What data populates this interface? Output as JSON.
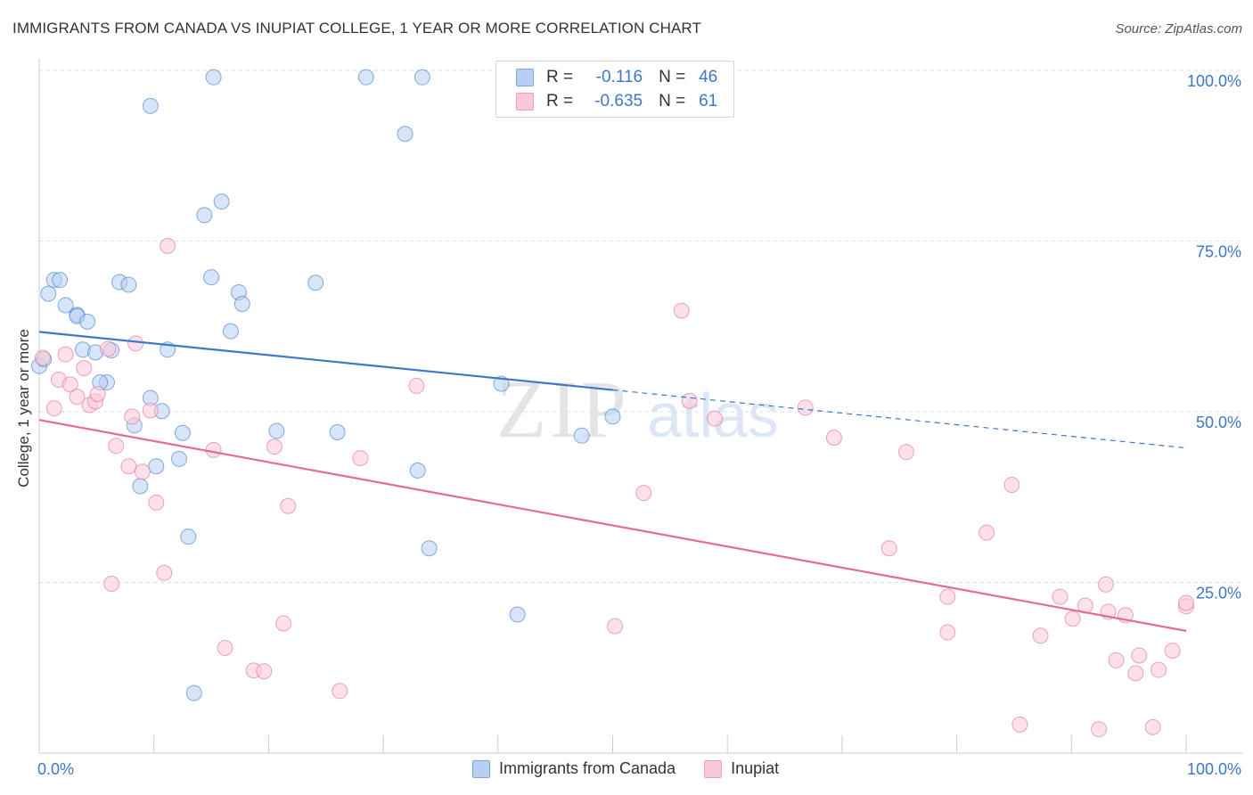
{
  "title": "IMMIGRANTS FROM CANADA VS INUPIAT COLLEGE, 1 YEAR OR MORE CORRELATION CHART",
  "source": "Source: ZipAtlas.com",
  "watermark": {
    "zip": "ZIP",
    "atlas": "atlas"
  },
  "legend": {
    "r_label": "R =",
    "n_label": "N =",
    "series": [
      {
        "name": "Immigrants from Canada",
        "r": "-0.116",
        "n": "46",
        "color": "#3b78c9"
      },
      {
        "name": "Inupiat",
        "r": "-0.635",
        "n": "61",
        "color": "#e46b96"
      }
    ]
  },
  "chart_data": {
    "type": "scatter",
    "title": "IMMIGRANTS FROM CANADA VS INUPIAT COLLEGE, 1 YEAR OR MORE CORRELATION CHART",
    "xlabel": "",
    "ylabel": "College, 1 year or more",
    "xlim": [
      0,
      100
    ],
    "ylim": [
      0,
      100
    ],
    "x_tick_labels": [
      "0.0%",
      "100.0%"
    ],
    "y_tick_labels": [
      "25.0%",
      "50.0%",
      "75.0%",
      "100.0%"
    ],
    "y_ticks": [
      25,
      50,
      75,
      100
    ],
    "grid": true,
    "legend_position": "top-center",
    "series": [
      {
        "name": "Immigrants from Canada",
        "color": "#3b78c9",
        "fill": "#b7cff3",
        "trend": {
          "x0": 0,
          "y0": 61.7,
          "x1": 100,
          "y1": 44.7,
          "solid_until": 50
        },
        "points": [
          [
            0.0,
            56.7
          ],
          [
            0.8,
            67.3
          ],
          [
            1.3,
            69.3
          ],
          [
            1.8,
            69.3
          ],
          [
            2.3,
            65.6
          ],
          [
            3.3,
            64.2
          ],
          [
            3.3,
            64.0
          ],
          [
            4.2,
            63.2
          ],
          [
            3.8,
            59.1
          ],
          [
            4.9,
            58.7
          ],
          [
            5.9,
            54.3
          ],
          [
            6.3,
            59.0
          ],
          [
            5.3,
            54.3
          ],
          [
            7.0,
            69.0
          ],
          [
            7.8,
            68.6
          ],
          [
            9.7,
            94.8
          ],
          [
            8.3,
            48.0
          ],
          [
            8.8,
            39.1
          ],
          [
            9.7,
            52.0
          ],
          [
            10.2,
            42.0
          ],
          [
            10.7,
            50.1
          ],
          [
            11.2,
            59.1
          ],
          [
            12.2,
            43.1
          ],
          [
            12.5,
            46.9
          ],
          [
            13.0,
            31.7
          ],
          [
            13.5,
            8.8
          ],
          [
            14.4,
            78.8
          ],
          [
            15.0,
            69.7
          ],
          [
            15.2,
            99.0
          ],
          [
            15.9,
            80.8
          ],
          [
            16.7,
            61.8
          ],
          [
            17.4,
            67.5
          ],
          [
            17.7,
            65.8
          ],
          [
            20.7,
            47.2
          ],
          [
            24.1,
            68.9
          ],
          [
            26.0,
            47.0
          ],
          [
            28.5,
            99.0
          ],
          [
            31.9,
            90.7
          ],
          [
            33.0,
            41.4
          ],
          [
            33.4,
            99.0
          ],
          [
            34.0,
            30.0
          ],
          [
            40.3,
            54.1
          ],
          [
            41.7,
            20.3
          ],
          [
            47.3,
            46.5
          ],
          [
            50.0,
            49.3
          ],
          [
            0.4,
            57.7
          ]
        ]
      },
      {
        "name": "Inupiat",
        "color": "#e46b96",
        "fill": "#f9c8d8",
        "trend": {
          "x0": 0,
          "y0": 48.8,
          "x1": 100,
          "y1": 17.9,
          "solid_until": 100
        },
        "points": [
          [
            0.3,
            57.9
          ],
          [
            1.3,
            50.5
          ],
          [
            1.7,
            54.7
          ],
          [
            2.3,
            58.4
          ],
          [
            2.7,
            54.0
          ],
          [
            3.3,
            52.2
          ],
          [
            3.9,
            56.4
          ],
          [
            4.4,
            51.0
          ],
          [
            4.9,
            51.5
          ],
          [
            5.1,
            52.6
          ],
          [
            6.0,
            59.2
          ],
          [
            6.3,
            24.8
          ],
          [
            6.7,
            45.0
          ],
          [
            7.8,
            42.0
          ],
          [
            8.1,
            49.3
          ],
          [
            8.4,
            60.0
          ],
          [
            9.0,
            41.2
          ],
          [
            9.7,
            50.2
          ],
          [
            10.2,
            36.7
          ],
          [
            10.9,
            26.4
          ],
          [
            11.2,
            74.3
          ],
          [
            15.2,
            44.4
          ],
          [
            16.2,
            15.4
          ],
          [
            18.7,
            12.1
          ],
          [
            19.6,
            12.0
          ],
          [
            20.5,
            44.9
          ],
          [
            21.3,
            19.0
          ],
          [
            21.7,
            36.2
          ],
          [
            26.2,
            9.1
          ],
          [
            28.0,
            43.2
          ],
          [
            32.9,
            53.8
          ],
          [
            50.2,
            18.6
          ],
          [
            52.7,
            38.1
          ],
          [
            56.0,
            64.8
          ],
          [
            56.7,
            51.6
          ],
          [
            58.9,
            49.0
          ],
          [
            66.8,
            50.6
          ],
          [
            69.3,
            46.2
          ],
          [
            74.1,
            30.0
          ],
          [
            75.6,
            44.1
          ],
          [
            79.2,
            17.7
          ],
          [
            79.2,
            22.9
          ],
          [
            82.6,
            32.3
          ],
          [
            84.8,
            39.3
          ],
          [
            85.5,
            4.2
          ],
          [
            87.3,
            17.2
          ],
          [
            89.0,
            22.9
          ],
          [
            90.1,
            19.7
          ],
          [
            91.2,
            21.6
          ],
          [
            92.4,
            3.5
          ],
          [
            93.0,
            24.7
          ],
          [
            93.2,
            20.7
          ],
          [
            93.9,
            13.6
          ],
          [
            94.7,
            20.2
          ],
          [
            95.6,
            11.7
          ],
          [
            95.9,
            14.3
          ],
          [
            97.1,
            3.8
          ],
          [
            97.6,
            12.2
          ],
          [
            98.8,
            15.0
          ],
          [
            100.0,
            21.5
          ],
          [
            100.0,
            22.0
          ]
        ]
      }
    ]
  }
}
